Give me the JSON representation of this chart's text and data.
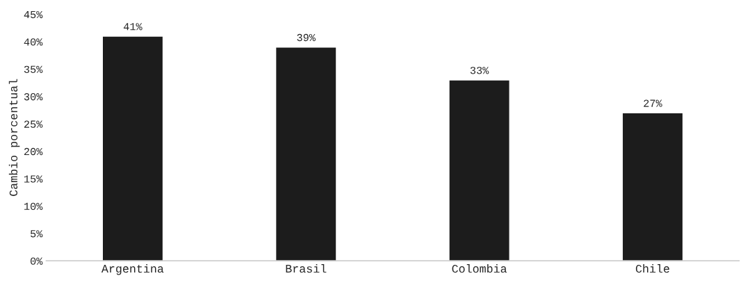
{
  "chart_data": {
    "type": "bar",
    "ylabel": "Cambio porcentual",
    "categories": [
      "Argentina",
      "Brasil",
      "Colombia",
      "Chile"
    ],
    "values": [
      41,
      39,
      33,
      27
    ],
    "color": "#1c1c1c",
    "value_labels": [
      "41%",
      "39%",
      "33%",
      "27%"
    ],
    "ylim": [
      0,
      45
    ],
    "yticks": [
      {
        "value": 0,
        "label": "0%"
      },
      {
        "value": 5,
        "label": "5%"
      },
      {
        "value": 10,
        "label": "10%"
      },
      {
        "value": 15,
        "label": "15%"
      },
      {
        "value": 20,
        "label": "20%"
      },
      {
        "value": 25,
        "label": "25%"
      },
      {
        "value": 30,
        "label": "30%"
      },
      {
        "value": 35,
        "label": "35%"
      },
      {
        "value": 40,
        "label": "40%"
      },
      {
        "value": 45,
        "label": "45%"
      }
    ],
    "grid": false
  }
}
